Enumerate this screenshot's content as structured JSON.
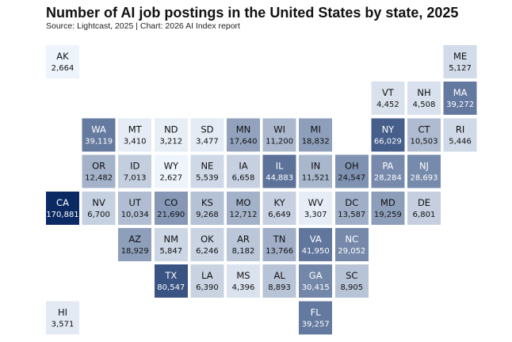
{
  "chart_data": {
    "type": "tile_map",
    "title": "Number of AI job postings in the United States by state, 2025",
    "subtitle": "Source: Lightcast, 2025 | Chart: 2026 AI Index report",
    "color_scale": {
      "low": "#eef4fb",
      "high": "#0b2a63"
    },
    "states": [
      {
        "abbr": "AK",
        "label": "2,664",
        "value": 2664,
        "col": 0,
        "row": 0
      },
      {
        "abbr": "ME",
        "label": "5,127",
        "value": 5127,
        "col": 11,
        "row": 0
      },
      {
        "abbr": "VT",
        "label": "4,452",
        "value": 4452,
        "col": 9,
        "row": 1
      },
      {
        "abbr": "NH",
        "label": "4,508",
        "value": 4508,
        "col": 10,
        "row": 1
      },
      {
        "abbr": "MA",
        "label": "39,272",
        "value": 39272,
        "col": 11,
        "row": 1
      },
      {
        "abbr": "WA",
        "label": "39,119",
        "value": 39119,
        "col": 1,
        "row": 2
      },
      {
        "abbr": "MT",
        "label": "3,410",
        "value": 3410,
        "col": 2,
        "row": 2
      },
      {
        "abbr": "ND",
        "label": "3,212",
        "value": 3212,
        "col": 3,
        "row": 2
      },
      {
        "abbr": "SD",
        "label": "3,477",
        "value": 3477,
        "col": 4,
        "row": 2
      },
      {
        "abbr": "MN",
        "label": "17,640",
        "value": 17640,
        "col": 5,
        "row": 2
      },
      {
        "abbr": "WI",
        "label": "11,200",
        "value": 11200,
        "col": 6,
        "row": 2
      },
      {
        "abbr": "MI",
        "label": "18,832",
        "value": 18832,
        "col": 7,
        "row": 2
      },
      {
        "abbr": "NY",
        "label": "66,029",
        "value": 66029,
        "col": 9,
        "row": 2
      },
      {
        "abbr": "CT",
        "label": "10,503",
        "value": 10503,
        "col": 10,
        "row": 2
      },
      {
        "abbr": "RI",
        "label": "5,446",
        "value": 5446,
        "col": 11,
        "row": 2
      },
      {
        "abbr": "OR",
        "label": "12,482",
        "value": 12482,
        "col": 1,
        "row": 3
      },
      {
        "abbr": "ID",
        "label": "7,013",
        "value": 7013,
        "col": 2,
        "row": 3
      },
      {
        "abbr": "WY",
        "label": "2,627",
        "value": 2627,
        "col": 3,
        "row": 3
      },
      {
        "abbr": "NE",
        "label": "5,539",
        "value": 5539,
        "col": 4,
        "row": 3
      },
      {
        "abbr": "IA",
        "label": "6,658",
        "value": 6658,
        "col": 5,
        "row": 3
      },
      {
        "abbr": "IL",
        "label": "44,883",
        "value": 44883,
        "col": 6,
        "row": 3
      },
      {
        "abbr": "IN",
        "label": "11,521",
        "value": 11521,
        "col": 7,
        "row": 3
      },
      {
        "abbr": "OH",
        "label": "24,547",
        "value": 24547,
        "col": 8,
        "row": 3
      },
      {
        "abbr": "PA",
        "label": "28,284",
        "value": 28284,
        "col": 9,
        "row": 3
      },
      {
        "abbr": "NJ",
        "label": "28,693",
        "value": 28693,
        "col": 10,
        "row": 3
      },
      {
        "abbr": "CA",
        "label": "170,881",
        "value": 170881,
        "col": 0,
        "row": 4
      },
      {
        "abbr": "NV",
        "label": "6,700",
        "value": 6700,
        "col": 1,
        "row": 4
      },
      {
        "abbr": "UT",
        "label": "10,034",
        "value": 10034,
        "col": 2,
        "row": 4
      },
      {
        "abbr": "CO",
        "label": "21,690",
        "value": 21690,
        "col": 3,
        "row": 4
      },
      {
        "abbr": "KS",
        "label": "9,268",
        "value": 9268,
        "col": 4,
        "row": 4
      },
      {
        "abbr": "MO",
        "label": "12,712",
        "value": 12712,
        "col": 5,
        "row": 4
      },
      {
        "abbr": "KY",
        "label": "6,649",
        "value": 6649,
        "col": 6,
        "row": 4
      },
      {
        "abbr": "WV",
        "label": "3,307",
        "value": 3307,
        "col": 7,
        "row": 4
      },
      {
        "abbr": "DC",
        "label": "13,587",
        "value": 13587,
        "col": 8,
        "row": 4
      },
      {
        "abbr": "MD",
        "label": "19,259",
        "value": 19259,
        "col": 9,
        "row": 4
      },
      {
        "abbr": "DE",
        "label": "6,801",
        "value": 6801,
        "col": 10,
        "row": 4
      },
      {
        "abbr": "AZ",
        "label": "18,929",
        "value": 18929,
        "col": 2,
        "row": 5
      },
      {
        "abbr": "NM",
        "label": "5,847",
        "value": 5847,
        "col": 3,
        "row": 5
      },
      {
        "abbr": "OK",
        "label": "6,246",
        "value": 6246,
        "col": 4,
        "row": 5
      },
      {
        "abbr": "AR",
        "label": "8,182",
        "value": 8182,
        "col": 5,
        "row": 5
      },
      {
        "abbr": "TN",
        "label": "13,766",
        "value": 13766,
        "col": 6,
        "row": 5
      },
      {
        "abbr": "VA",
        "label": "41,950",
        "value": 41950,
        "col": 7,
        "row": 5
      },
      {
        "abbr": "NC",
        "label": "29,052",
        "value": 29052,
        "col": 8,
        "row": 5
      },
      {
        "abbr": "TX",
        "label": "80,547",
        "value": 80547,
        "col": 3,
        "row": 6
      },
      {
        "abbr": "LA",
        "label": "6,390",
        "value": 6390,
        "col": 4,
        "row": 6
      },
      {
        "abbr": "MS",
        "label": "4,396",
        "value": 4396,
        "col": 5,
        "row": 6
      },
      {
        "abbr": "AL",
        "label": "8,893",
        "value": 8893,
        "col": 6,
        "row": 6
      },
      {
        "abbr": "GA",
        "label": "30,415",
        "value": 30415,
        "col": 7,
        "row": 6
      },
      {
        "abbr": "SC",
        "label": "8,905",
        "value": 8905,
        "col": 8,
        "row": 6
      },
      {
        "abbr": "HI",
        "label": "3,571",
        "value": 3571,
        "col": 0,
        "row": 7
      },
      {
        "abbr": "FL",
        "label": "39,257",
        "value": 39257,
        "col": 7,
        "row": 7
      }
    ]
  }
}
